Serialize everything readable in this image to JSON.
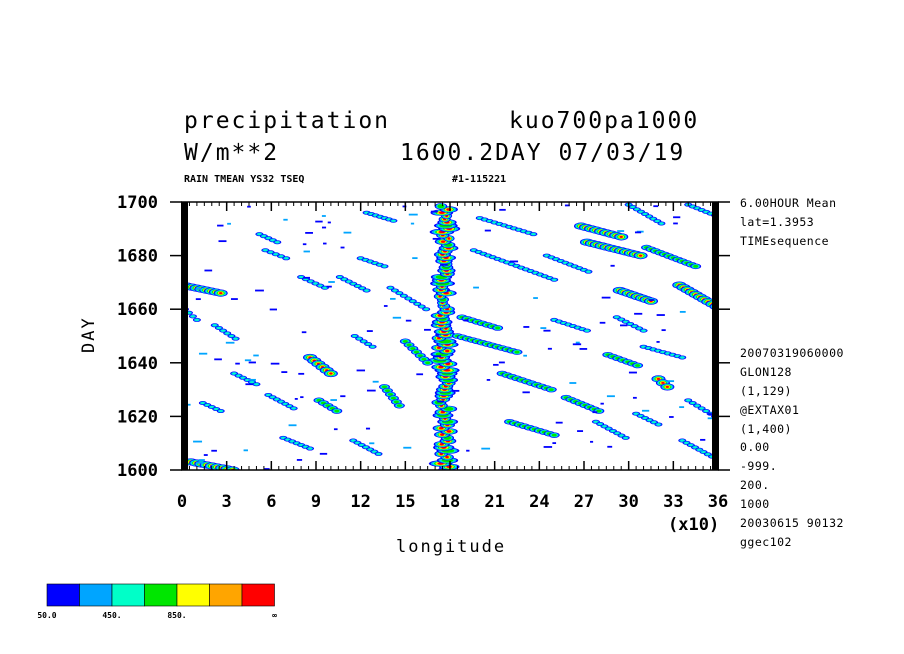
{
  "header": {
    "variable": "precipitation",
    "run_name": "kuo700pa1000",
    "units": "W/m**2",
    "time_info": "1600.2DAY 07/03/19",
    "subtitle_left": "RAIN TMEAN YS32 TSEQ",
    "subtitle_right": "#1-115221"
  },
  "side_info_top": [
    "6.00HOUR Mean",
    "lat=1.3953",
    "TIMEsequence"
  ],
  "side_info_bottom": [
    "20070319060000",
    "GLON128",
    "(1,129)",
    "@EXTAX01",
    "(1,400)",
    "0.00",
    "-999.",
    "200.",
    "1000",
    "20030615  90132",
    "ggec102"
  ],
  "chart_data": {
    "type": "heatmap",
    "title": "precipitation",
    "xlabel": "longitude",
    "ylabel": "DAY",
    "x_multiplier": "(x10)",
    "xlim": [
      0,
      36
    ],
    "ylim": [
      1600,
      1700
    ],
    "x_ticks": [
      "0",
      "3",
      "6",
      "9",
      "12",
      "15",
      "18",
      "21",
      "24",
      "27",
      "30",
      "33",
      "36"
    ],
    "y_ticks": [
      "1600",
      "1620",
      "1640",
      "1660",
      "1680",
      "1700"
    ],
    "description": "Hovmoller diagram of precipitation; westward-propagating streaks with a persistent intense band near longitude 17.5",
    "features": [
      {
        "kind": "band",
        "x": 17.6,
        "y0": 1600,
        "y1": 1699,
        "level": "high"
      },
      {
        "kind": "streak",
        "x0": 0,
        "y0": 1669,
        "x1": 2.6,
        "y1": 1666,
        "level": "high"
      },
      {
        "kind": "streak",
        "x0": 0.6,
        "y0": 1603,
        "x1": 3.4,
        "y1": 1600,
        "level": "high"
      },
      {
        "kind": "streak",
        "x0": 8.6,
        "y0": 1642,
        "x1": 10.0,
        "y1": 1636,
        "level": "high"
      },
      {
        "kind": "streak",
        "x0": 26.8,
        "y0": 1691,
        "x1": 29.5,
        "y1": 1687,
        "level": "high"
      },
      {
        "kind": "streak",
        "x0": 27.2,
        "y0": 1685,
        "x1": 30.8,
        "y1": 1680,
        "level": "high"
      },
      {
        "kind": "streak",
        "x0": 29.4,
        "y0": 1667,
        "x1": 31.5,
        "y1": 1663,
        "level": "high"
      },
      {
        "kind": "streak",
        "x0": 33.4,
        "y0": 1669,
        "x1": 35.9,
        "y1": 1661,
        "level": "high"
      },
      {
        "kind": "streak",
        "x0": 32.0,
        "y0": 1634,
        "x1": 32.6,
        "y1": 1631,
        "level": "high"
      },
      {
        "kind": "streak",
        "x0": 18.8,
        "y0": 1657,
        "x1": 21.2,
        "y1": 1653,
        "level": "mid"
      },
      {
        "kind": "streak",
        "x0": 18.5,
        "y0": 1650,
        "x1": 22.5,
        "y1": 1644,
        "level": "mid"
      },
      {
        "kind": "streak",
        "x0": 21.5,
        "y0": 1636,
        "x1": 24.8,
        "y1": 1630,
        "level": "mid"
      },
      {
        "kind": "streak",
        "x0": 25.8,
        "y0": 1627,
        "x1": 28.0,
        "y1": 1622,
        "level": "mid"
      },
      {
        "kind": "streak",
        "x0": 22.0,
        "y0": 1618,
        "x1": 25.0,
        "y1": 1613,
        "level": "mid"
      },
      {
        "kind": "streak",
        "x0": 13.6,
        "y0": 1631,
        "x1": 14.6,
        "y1": 1624,
        "level": "mid"
      },
      {
        "kind": "streak",
        "x0": 9.2,
        "y0": 1626,
        "x1": 10.4,
        "y1": 1622,
        "level": "mid"
      },
      {
        "kind": "streak",
        "x0": 1.4,
        "y0": 1625,
        "x1": 2.6,
        "y1": 1622,
        "level": "low"
      },
      {
        "kind": "streak",
        "x0": 5.6,
        "y0": 1682,
        "x1": 7.0,
        "y1": 1679,
        "level": "low"
      },
      {
        "kind": "streak",
        "x0": 5.2,
        "y0": 1688,
        "x1": 6.4,
        "y1": 1685,
        "level": "low"
      },
      {
        "kind": "streak",
        "x0": 12.4,
        "y0": 1696,
        "x1": 14.2,
        "y1": 1693,
        "level": "low"
      },
      {
        "kind": "streak",
        "x0": 20.0,
        "y0": 1694,
        "x1": 23.6,
        "y1": 1688,
        "level": "low"
      },
      {
        "kind": "streak",
        "x0": 19.6,
        "y0": 1682,
        "x1": 25.0,
        "y1": 1671,
        "level": "low"
      },
      {
        "kind": "streak",
        "x0": 24.5,
        "y0": 1680,
        "x1": 27.3,
        "y1": 1674,
        "level": "low"
      },
      {
        "kind": "streak",
        "x0": 31.2,
        "y0": 1683,
        "x1": 34.5,
        "y1": 1676,
        "level": "mid"
      },
      {
        "kind": "streak",
        "x0": 30.0,
        "y0": 1699,
        "x1": 32.2,
        "y1": 1692,
        "level": "low"
      },
      {
        "kind": "streak",
        "x0": 34.0,
        "y0": 1699,
        "x1": 35.8,
        "y1": 1695,
        "level": "low"
      },
      {
        "kind": "streak",
        "x0": 10.6,
        "y0": 1672,
        "x1": 12.4,
        "y1": 1667,
        "level": "low"
      },
      {
        "kind": "streak",
        "x0": 12.0,
        "y0": 1679,
        "x1": 13.6,
        "y1": 1676,
        "level": "low"
      },
      {
        "kind": "streak",
        "x0": 15.0,
        "y0": 1648,
        "x1": 16.5,
        "y1": 1640,
        "level": "mid"
      },
      {
        "kind": "streak",
        "x0": 14.0,
        "y0": 1668,
        "x1": 16.4,
        "y1": 1660,
        "level": "low"
      },
      {
        "kind": "streak",
        "x0": 3.5,
        "y0": 1636,
        "x1": 5.0,
        "y1": 1632,
        "level": "low"
      },
      {
        "kind": "streak",
        "x0": 5.8,
        "y0": 1628,
        "x1": 7.5,
        "y1": 1623,
        "level": "low"
      },
      {
        "kind": "streak",
        "x0": 6.8,
        "y0": 1612,
        "x1": 8.6,
        "y1": 1608,
        "level": "low"
      },
      {
        "kind": "streak",
        "x0": 11.5,
        "y0": 1611,
        "x1": 13.2,
        "y1": 1606,
        "level": "low"
      },
      {
        "kind": "streak",
        "x0": 2.2,
        "y0": 1654,
        "x1": 3.6,
        "y1": 1649,
        "level": "low"
      },
      {
        "kind": "streak",
        "x0": 11.6,
        "y0": 1650,
        "x1": 12.8,
        "y1": 1646,
        "level": "low"
      },
      {
        "kind": "streak",
        "x0": 28.6,
        "y0": 1643,
        "x1": 30.6,
        "y1": 1639,
        "level": "mid"
      },
      {
        "kind": "streak",
        "x0": 31.0,
        "y0": 1646,
        "x1": 33.6,
        "y1": 1642,
        "level": "low"
      },
      {
        "kind": "streak",
        "x0": 29.2,
        "y0": 1657,
        "x1": 31.0,
        "y1": 1652,
        "level": "low"
      },
      {
        "kind": "streak",
        "x0": 25.0,
        "y0": 1656,
        "x1": 27.2,
        "y1": 1652,
        "level": "low"
      },
      {
        "kind": "streak",
        "x0": 30.5,
        "y0": 1621,
        "x1": 32.0,
        "y1": 1617,
        "level": "low"
      },
      {
        "kind": "streak",
        "x0": 34.0,
        "y0": 1626,
        "x1": 35.8,
        "y1": 1620,
        "level": "low"
      },
      {
        "kind": "streak",
        "x0": 27.8,
        "y0": 1618,
        "x1": 29.8,
        "y1": 1612,
        "level": "low"
      },
      {
        "kind": "streak",
        "x0": 33.6,
        "y0": 1611,
        "x1": 35.6,
        "y1": 1605,
        "level": "low"
      },
      {
        "kind": "streak",
        "x0": 0.2,
        "y0": 1660,
        "x1": 1.0,
        "y1": 1656,
        "level": "low"
      },
      {
        "kind": "streak",
        "x0": 8.0,
        "y0": 1672,
        "x1": 9.6,
        "y1": 1668,
        "level": "low"
      }
    ],
    "colorbar": {
      "colors": [
        "#0000ff",
        "#00a5ff",
        "#00ffc8",
        "#00e600",
        "#ffff00",
        "#ffa500",
        "#ff0000"
      ],
      "labels": [
        "50.0",
        "450.",
        "850.",
        "∞"
      ]
    }
  }
}
